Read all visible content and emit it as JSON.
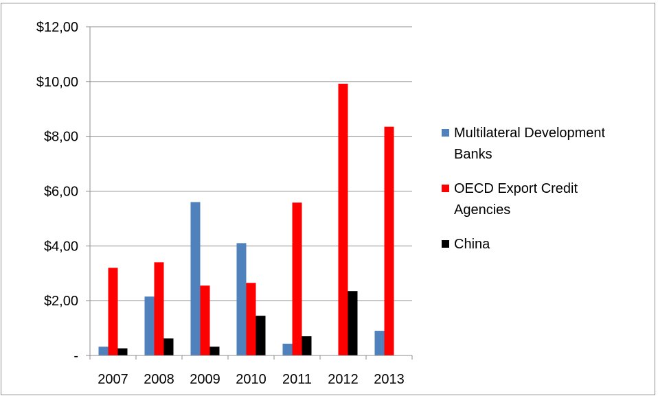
{
  "chart_data": {
    "type": "bar",
    "title": "",
    "xlabel": "",
    "ylabel": "",
    "categories": [
      "2007",
      "2008",
      "2009",
      "2010",
      "2011",
      "2012",
      "2013"
    ],
    "series": [
      {
        "name": "Multilateral Development Banks",
        "color": "#4f81bd",
        "values": [
          0.32,
          2.15,
          5.6,
          4.1,
          0.43,
          0.0,
          0.9
        ]
      },
      {
        "name": "OECD Export Credit Agencies",
        "color": "#ff0000",
        "values": [
          3.2,
          3.4,
          2.55,
          2.65,
          5.58,
          9.92,
          8.35
        ]
      },
      {
        "name": "China",
        "color": "#000000",
        "values": [
          0.26,
          0.62,
          0.32,
          1.45,
          0.7,
          2.35,
          0.0
        ]
      }
    ],
    "ylim": [
      0,
      12
    ],
    "yticks": [
      0,
      2,
      4,
      6,
      8,
      10,
      12
    ],
    "ytick_labels": [
      "-",
      "$2,00",
      "$4,00",
      "$6,00",
      "$8,00",
      "$10,00",
      "$12,00"
    ],
    "legend": {
      "position": "right",
      "entries": [
        {
          "lines": [
            "Multilateral Development",
            "Banks"
          ]
        },
        {
          "lines": [
            "OECD Export Credit",
            "Agencies"
          ]
        },
        {
          "lines": [
            "China"
          ]
        }
      ]
    },
    "grid": "horizontal"
  }
}
